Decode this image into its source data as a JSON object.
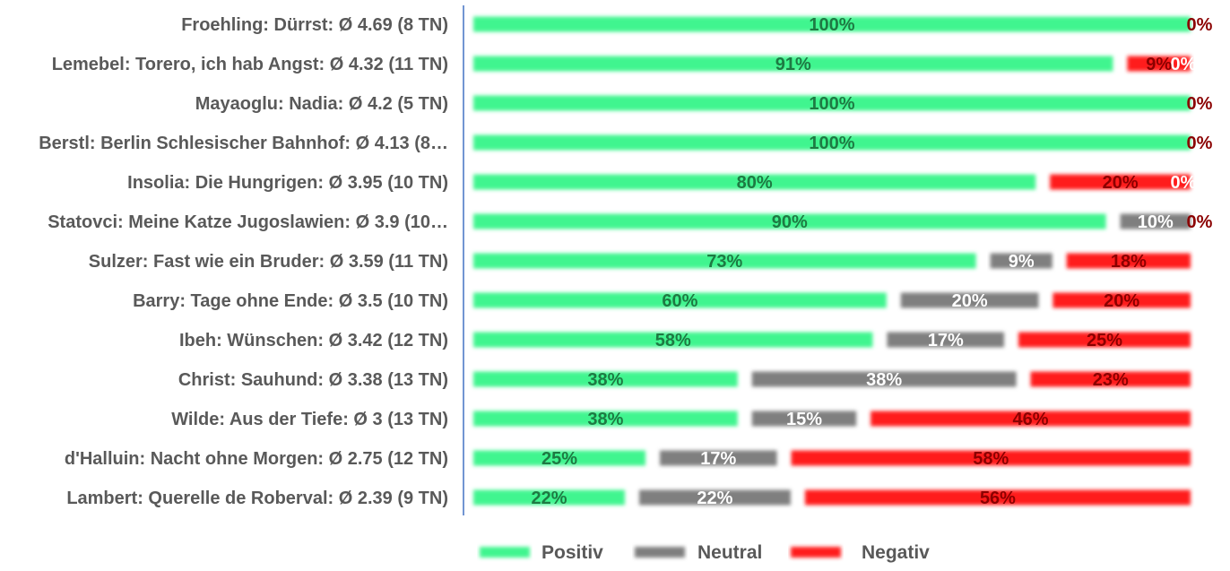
{
  "chart_data": {
    "type": "bar",
    "orientation": "horizontal",
    "stacked": "percent",
    "title": "",
    "xlabel": "",
    "ylabel": "",
    "xlim": [
      0,
      100
    ],
    "legend_position": "bottom",
    "categories": [
      "Froehling: Dürrst: Ø 4.69 (8 TN)",
      "Lemebel: Torero, ich hab Angst: Ø 4.32 (11 TN)",
      "Mayaoglu: Nadia: Ø 4.2 (5 TN)",
      "Berstl: Berlin Schlesischer Bahnhof: Ø 4.13 (8…",
      "Insolia: Die Hungrigen: Ø 3.95 (10 TN)",
      "Statovci: Meine Katze Jugoslawien: Ø 3.9 (10…",
      "Sulzer: Fast wie ein Bruder: Ø 3.59 (11 TN)",
      "Barry: Tage ohne Ende: Ø 3.5 (10 TN)",
      "Ibeh: Wünschen: Ø 3.42 (12 TN)",
      "Christ: Sauhund: Ø 3.38 (13 TN)",
      "Wilde: Aus der Tiefe: Ø 3 (13 TN)",
      "d'Halluin: Nacht ohne Morgen: Ø 2.75 (12 TN)",
      "Lambert: Querelle de Roberval: Ø 2.39 (9 TN)"
    ],
    "series": [
      {
        "name": "Positiv",
        "color": "#3ff58f",
        "label_color": "#1e7a43",
        "values": [
          100,
          91,
          100,
          100,
          80,
          90,
          73,
          60,
          58,
          38,
          38,
          25,
          22
        ],
        "labels": [
          "100%",
          "91%",
          "100%",
          "100%",
          "80%",
          "90%",
          "73%",
          "60%",
          "58%",
          "38%",
          "38%",
          "25%",
          "22%"
        ]
      },
      {
        "name": "Neutral",
        "color": "#7f7f7f",
        "label_color": "#ffffff",
        "values": [
          0,
          0,
          0,
          0,
          0,
          10,
          9,
          20,
          17,
          38,
          15,
          17,
          22
        ],
        "labels": [
          "",
          "0%",
          "",
          "",
          "0%",
          "10%",
          "9%",
          "20%",
          "17%",
          "38%",
          "15%",
          "17%",
          "22%"
        ]
      },
      {
        "name": "Negativ",
        "color": "#ff1a1a",
        "label_color": "#8b0000",
        "values": [
          0,
          9,
          0,
          0,
          20,
          0,
          18,
          20,
          25,
          23,
          46,
          58,
          56
        ],
        "labels": [
          "0%",
          "9%",
          "0%",
          "0%",
          "20%",
          "0%",
          "18%",
          "20%",
          "25%",
          "23%",
          "46%",
          "58%",
          "56%"
        ]
      }
    ]
  }
}
